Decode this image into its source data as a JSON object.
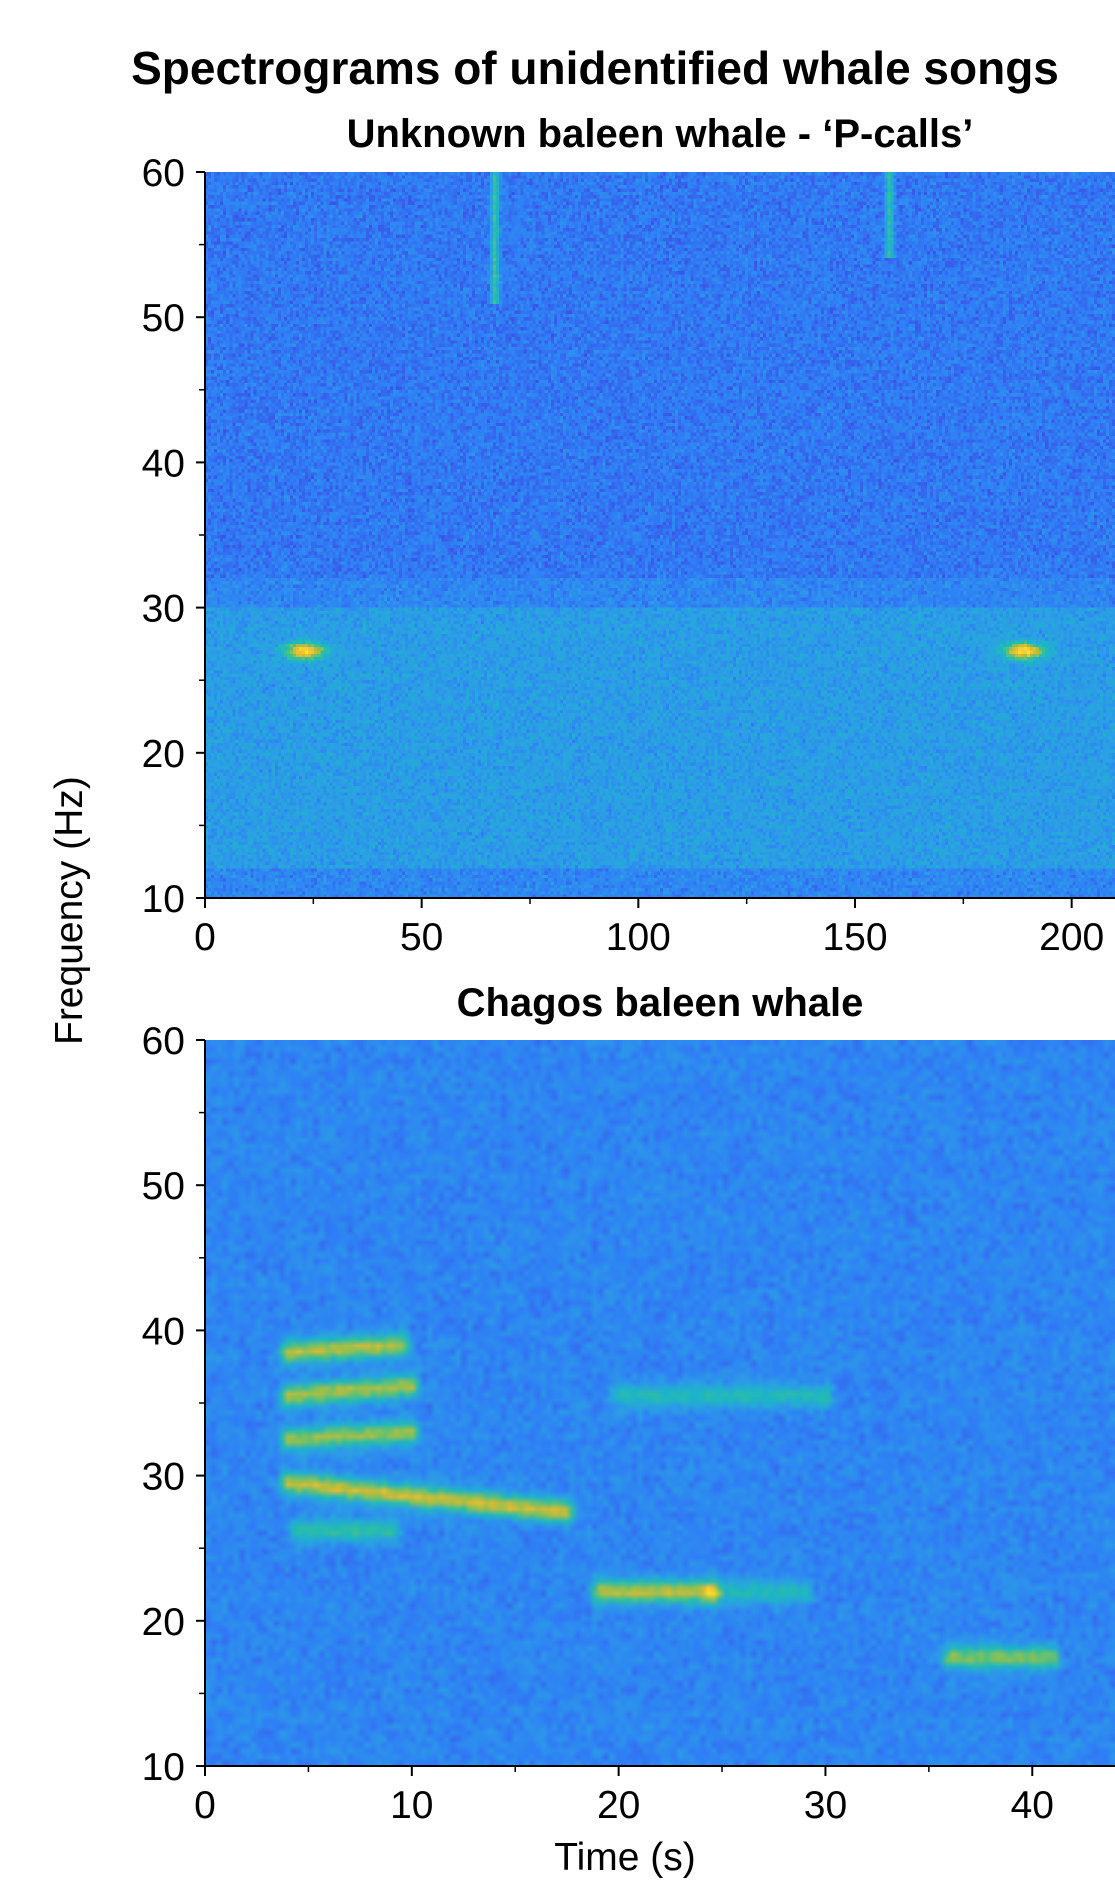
{
  "title": "Spectrograms of unidentified whale songs",
  "ylabel": "Frequency (Hz)",
  "xlabel": "Time (s)",
  "colormap": [
    "#3e26a8",
    "#3d4be3",
    "#2f7ff6",
    "#2ba0e4",
    "#1cb5c8",
    "#32c09b",
    "#8ac154",
    "#d8ba32",
    "#fcc933",
    "#f9f816"
  ],
  "chart_data": [
    {
      "type": "heatmap",
      "title": "Unknown baleen whale - ‘P-calls’",
      "xlabel": "",
      "ylabel": "Frequency (Hz)",
      "xlim": [
        0,
        210
      ],
      "ylim": [
        10,
        60
      ],
      "xticks": [
        0,
        50,
        100,
        150,
        200
      ],
      "yticks": [
        10,
        20,
        30,
        40,
        50,
        60
      ],
      "xtick_labels": [
        "0",
        "50",
        "100",
        "150",
        "200"
      ],
      "ytick_labels": [
        "10",
        "20",
        "30",
        "40",
        "50",
        "60"
      ],
      "signals": [
        {
          "kind": "call",
          "t": 23,
          "f": 27,
          "duration": 10,
          "bandwidth": 1.2,
          "intensity": 1.0
        },
        {
          "kind": "call",
          "t": 189,
          "f": 27,
          "duration": 10,
          "bandwidth": 1.2,
          "intensity": 1.0
        },
        {
          "kind": "transient",
          "t": 67,
          "f_range": [
            51,
            60
          ],
          "intensity": 0.55
        },
        {
          "kind": "transient",
          "t": 158,
          "f_range": [
            54,
            60
          ],
          "intensity": 0.5
        },
        {
          "kind": "noise_band",
          "f_range": [
            12,
            30
          ],
          "intensity": 0.45
        }
      ]
    },
    {
      "type": "heatmap",
      "title": "Chagos baleen whale",
      "xlabel": "Time (s)",
      "ylabel": "Frequency (Hz)",
      "xlim": [
        0,
        44
      ],
      "ylim": [
        10,
        60
      ],
      "xticks": [
        0,
        10,
        20,
        30,
        40
      ],
      "yticks": [
        10,
        20,
        30,
        40,
        50,
        60
      ],
      "xtick_labels": [
        "0",
        "10",
        "20",
        "30",
        "40"
      ],
      "ytick_labels": [
        "10",
        "20",
        "30",
        "40",
        "50",
        "60"
      ],
      "signals": [
        {
          "kind": "tone",
          "t_start": 4,
          "t_end": 9.5,
          "f_start": 38.5,
          "f_end": 39,
          "intensity": 0.95
        },
        {
          "kind": "tone",
          "t_start": 4,
          "t_end": 10,
          "f_start": 35.5,
          "f_end": 36.2,
          "intensity": 0.9
        },
        {
          "kind": "tone",
          "t_start": 4,
          "t_end": 10,
          "f_start": 32.5,
          "f_end": 33,
          "intensity": 0.85
        },
        {
          "kind": "tone",
          "t_start": 4,
          "t_end": 17.5,
          "f_start": 29.5,
          "f_end": 27.5,
          "intensity": 1.0
        },
        {
          "kind": "tone",
          "t_start": 4.5,
          "t_end": 9,
          "f_start": 26.2,
          "f_end": 26.2,
          "intensity": 0.55
        },
        {
          "kind": "tone",
          "t_start": 19,
          "t_end": 24.5,
          "f_start": 22,
          "f_end": 22,
          "intensity": 0.95
        },
        {
          "kind": "tone",
          "t_start": 24.5,
          "t_end": 29,
          "f_start": 22,
          "f_end": 22,
          "intensity": 0.45
        },
        {
          "kind": "tone",
          "t_start": 20,
          "t_end": 30,
          "f_start": 35.5,
          "f_end": 35.5,
          "intensity": 0.45
        },
        {
          "kind": "tone",
          "t_start": 36,
          "t_end": 41,
          "f_start": 17.5,
          "f_end": 17.5,
          "intensity": 0.8
        }
      ]
    }
  ]
}
